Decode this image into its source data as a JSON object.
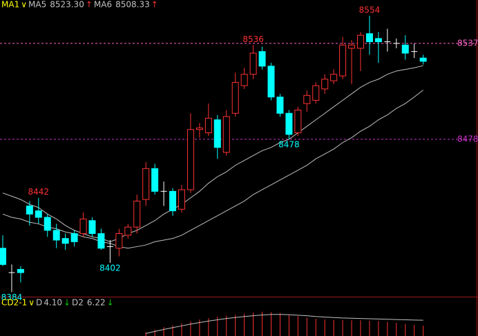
{
  "chart_data": {
    "type": "candlestick",
    "header": [
      {
        "text": "MA1",
        "color": "#ffff00"
      },
      {
        "text": "∨",
        "color": "#ffff00"
      },
      {
        "text": "MA5",
        "color": "#c0c0c0"
      },
      {
        "text": "8523.30",
        "color": "#c0c0c0"
      },
      {
        "text": "↑",
        "color": "#ff3232"
      },
      {
        "text": "MA6",
        "color": "#c0c0c0"
      },
      {
        "text": "8508.33",
        "color": "#c0c0c0"
      },
      {
        "text": "↑",
        "color": "#ff3232"
      }
    ],
    "ylim": [
      8381.2,
      8563.7
    ],
    "open": [
      8411,
      8396,
      8398,
      8437,
      8434,
      8430,
      8422,
      8417,
      8420,
      8420,
      8428,
      8420,
      8412,
      8411,
      8419,
      8424,
      8441,
      8460,
      8446,
      8446,
      8435,
      8447,
      8484,
      8482,
      8490,
      8470,
      8494,
      8511,
      8518,
      8532,
      8523,
      8504,
      8494,
      8482,
      8500,
      8502,
      8509,
      8514,
      8517,
      8534,
      8534,
      8543,
      8540,
      8538,
      8537,
      8536,
      8532,
      8528
    ],
    "high": [
      8419,
      8401,
      8400,
      8440,
      8442,
      8432,
      8426,
      8420,
      8422,
      8433,
      8430,
      8423,
      8416,
      8423,
      8426,
      8444,
      8464,
      8463,
      8452,
      8448,
      8450,
      8494,
      8488,
      8500,
      8493,
      8496,
      8519,
      8522,
      8536,
      8535,
      8525,
      8506,
      8496,
      8498,
      8508,
      8513,
      8518,
      8521,
      8541,
      8539,
      8544,
      8554,
      8544,
      8546,
      8540,
      8542,
      8537,
      8530
    ],
    "low": [
      8400,
      8384,
      8390,
      8425,
      8426,
      8418,
      8411,
      8410,
      8412,
      8418,
      8418,
      8410,
      8402,
      8406,
      8417,
      8420,
      8437,
      8444,
      8437,
      8431,
      8433,
      8445,
      8479,
      8480,
      8466,
      8468,
      8492,
      8509,
      8515,
      8521,
      8502,
      8492,
      8478,
      8480,
      8495,
      8500,
      8506,
      8512,
      8515,
      8512,
      8520,
      8530,
      8525,
      8532,
      8534,
      8527,
      8528,
      8524
    ],
    "close": [
      8401,
      8396,
      8396,
      8432,
      8430,
      8422,
      8416,
      8414,
      8415,
      8429,
      8420,
      8411,
      8412,
      8420,
      8424,
      8440,
      8460,
      8446,
      8446,
      8434,
      8447,
      8484,
      8485,
      8491,
      8473,
      8492,
      8513,
      8518,
      8531,
      8523,
      8504,
      8494,
      8481,
      8496,
      8505,
      8511,
      8515,
      8518,
      8536,
      8536,
      8542,
      8538,
      8538,
      8538,
      8537,
      8531,
      8532,
      8526
    ],
    "up_color": "#ff3232",
    "down_color": "#00ffff",
    "flat_color": "#ffffff",
    "series": [
      {
        "name": "MA5",
        "color": "#c0c0c0",
        "values": [
          8445,
          8443,
          8441,
          8438,
          8436,
          8432,
          8429,
          8425,
          8422,
          8420,
          8418,
          8417,
          8415,
          8417,
          8420,
          8422,
          8425,
          8428,
          8432,
          8435,
          8438,
          8442,
          8446,
          8451,
          8455,
          8458,
          8462,
          8465,
          8468,
          8471,
          8473,
          8476,
          8478,
          8482,
          8486,
          8490,
          8494,
          8498,
          8502,
          8506,
          8510,
          8513,
          8515,
          8518,
          8520,
          8521,
          8522,
          8523.3
        ]
      },
      {
        "name": "MA6",
        "color": "#c0c0c0",
        "values": [
          8432,
          8430,
          8429,
          8427,
          8426,
          8424,
          8423,
          8421,
          8420,
          8418,
          8417,
          8415,
          8414,
          8412,
          8411,
          8412,
          8413,
          8415,
          8416,
          8417,
          8419,
          8422,
          8425,
          8428,
          8431,
          8434,
          8437,
          8440,
          8444,
          8447,
          8450,
          8453,
          8456,
          8459,
          8462,
          8466,
          8469,
          8472,
          8476,
          8479,
          8483,
          8486,
          8490,
          8493,
          8497,
          8500,
          8504,
          8508.33
        ]
      }
    ],
    "annotations": [
      {
        "value": 8442,
        "kind": "high"
      },
      {
        "value": 8536,
        "kind": "high"
      },
      {
        "value": 8554,
        "kind": "high"
      },
      {
        "value": 8384,
        "kind": "low"
      },
      {
        "value": 8402,
        "kind": "low"
      },
      {
        "value": 8478,
        "kind": "low"
      }
    ],
    "price_lines": [
      {
        "value": 8537,
        "color": "#ff66cc"
      },
      {
        "value": 8478,
        "color": "#cc33cc"
      }
    ],
    "indicator": {
      "header": [
        {
          "text": "CD2-1",
          "color": "#ffff00"
        },
        {
          "text": "∨",
          "color": "#ffff00"
        },
        {
          "text": "D",
          "color": "#c0c0c0"
        },
        {
          "text": "4.10",
          "color": "#c0c0c0"
        },
        {
          "text": "↓",
          "color": "#00cc00"
        },
        {
          "text": "D2",
          "color": "#c0c0c0"
        },
        {
          "text": "6.22",
          "color": "#c0c0c0"
        },
        {
          "text": "↓",
          "color": "#00cc00"
        }
      ],
      "ylim": [
        0,
        12.8
      ],
      "bars": {
        "name": "D",
        "color": "#ff3232",
        "values": [
          null,
          null,
          null,
          null,
          null,
          null,
          null,
          null,
          null,
          null,
          null,
          null,
          null,
          null,
          null,
          null,
          1.5,
          2.5,
          3.5,
          4.2,
          5.0,
          5.8,
          6.5,
          7.0,
          7.6,
          8.0,
          8.4,
          8.8,
          9.2,
          9.6,
          9.4,
          9.0,
          8.4,
          7.8,
          7.2,
          6.8,
          6.6,
          6.4,
          6.3,
          6.2,
          6.2,
          6.0,
          5.9,
          5.6,
          5.2,
          4.8,
          4.4,
          4.1
        ]
      },
      "line": {
        "name": "D2",
        "color": "#c0c0c0",
        "values": [
          null,
          null,
          null,
          null,
          null,
          null,
          null,
          null,
          null,
          null,
          null,
          null,
          null,
          null,
          null,
          null,
          1.0,
          1.8,
          2.6,
          3.3,
          4.0,
          4.7,
          5.3,
          5.9,
          6.4,
          6.9,
          7.3,
          7.7,
          8.0,
          8.3,
          8.5,
          8.5,
          8.4,
          8.2,
          8.0,
          7.7,
          7.5,
          7.3,
          7.1,
          7.0,
          6.9,
          6.8,
          6.7,
          6.6,
          6.5,
          6.4,
          6.3,
          6.22
        ]
      }
    }
  }
}
